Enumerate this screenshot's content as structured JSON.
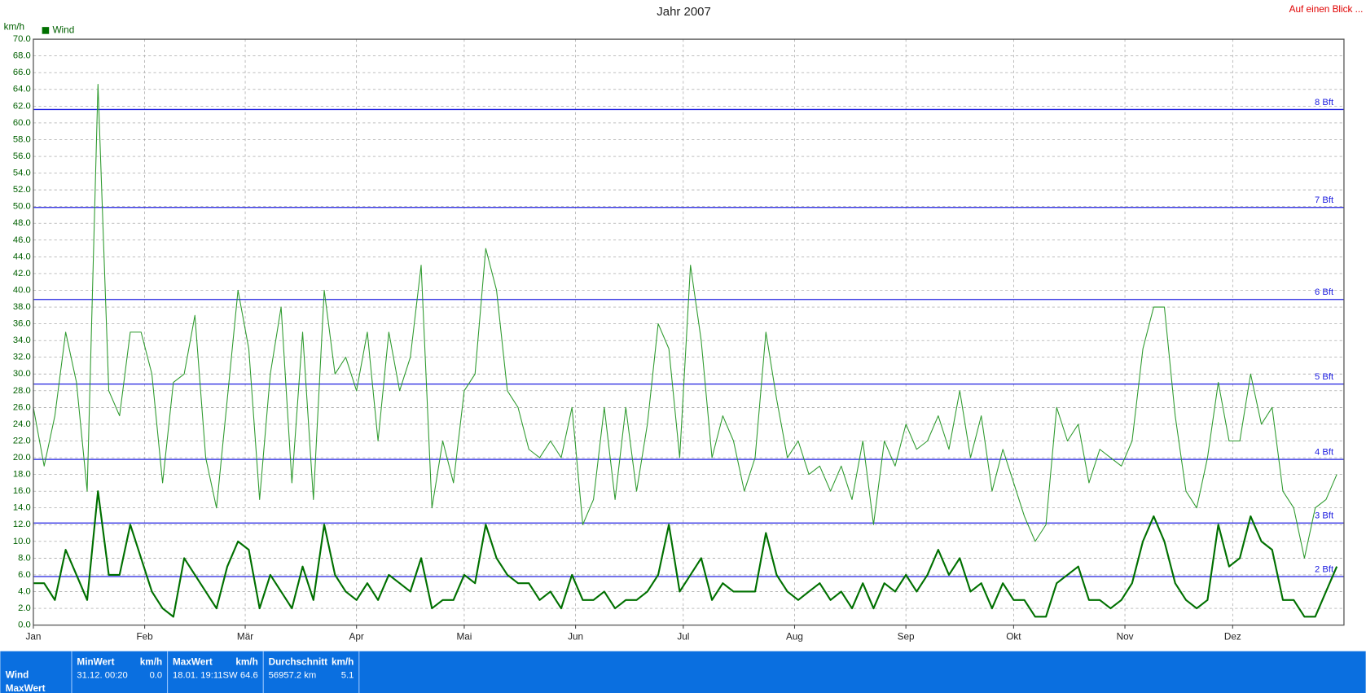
{
  "chart_data": {
    "type": "line",
    "title": "Jahr 2007",
    "y_unit": "km/h",
    "link": "Auf einen Blick ...",
    "x": [
      0,
      3,
      6,
      9,
      12,
      15,
      18,
      21,
      24,
      27,
      30,
      33,
      36,
      39,
      42,
      45,
      48,
      51,
      54,
      57,
      60,
      63,
      66,
      69,
      72,
      75,
      78,
      81,
      84,
      87,
      90,
      93,
      96,
      99,
      102,
      105,
      108,
      111,
      114,
      117,
      120,
      123,
      126,
      129,
      132,
      135,
      138,
      141,
      144,
      147,
      150,
      153,
      156,
      159,
      162,
      165,
      168,
      171,
      174,
      177,
      180,
      183,
      186,
      189,
      192,
      195,
      198,
      201,
      204,
      207,
      210,
      213,
      216,
      219,
      222,
      225,
      228,
      231,
      234,
      237,
      240,
      243,
      246,
      249,
      252,
      255,
      258,
      261,
      264,
      267,
      270,
      273,
      276,
      279,
      282,
      285,
      288,
      291,
      294,
      297,
      300,
      303,
      306,
      309,
      312,
      315,
      318,
      321,
      324,
      327,
      330,
      333,
      336,
      339,
      342,
      345,
      348,
      351,
      354,
      357,
      360,
      363
    ],
    "series": [
      {
        "color": "#2e9a2e",
        "width": 1,
        "values": [
          26,
          19,
          25,
          35,
          29,
          16,
          64.6,
          28,
          25,
          35,
          35,
          30,
          17,
          29,
          30,
          37,
          20,
          14,
          27,
          40,
          33,
          15,
          30,
          38,
          17,
          35,
          15,
          40,
          30,
          32,
          28,
          35,
          22,
          35,
          28,
          32,
          43,
          14,
          22,
          17,
          28,
          30,
          45,
          40,
          28,
          26,
          21,
          20,
          22,
          20,
          26,
          12,
          15,
          26,
          15,
          26,
          16,
          24,
          36,
          33,
          20,
          43,
          34,
          20,
          25,
          22,
          16,
          20,
          35,
          27,
          20,
          22,
          18,
          19,
          16,
          19,
          15,
          22,
          12,
          22,
          19,
          24,
          21,
          22,
          25,
          21,
          28,
          20,
          25,
          16,
          21,
          17,
          13,
          10,
          12,
          26,
          22,
          24,
          17,
          21,
          20,
          19,
          22,
          33,
          38,
          38,
          25,
          16,
          14,
          20,
          29,
          22,
          22,
          30,
          24,
          26,
          16,
          14,
          8,
          14,
          15,
          18
        ]
      },
      {
        "name": "Wind",
        "color": "#007000",
        "width": 2,
        "values": [
          5,
          5,
          3,
          9,
          6,
          3,
          16,
          6,
          6,
          12,
          8,
          4,
          2,
          1,
          8,
          6,
          4,
          2,
          7,
          10,
          9,
          2,
          6,
          4,
          2,
          7,
          3,
          12,
          6,
          4,
          3,
          5,
          3,
          6,
          5,
          4,
          8,
          2,
          3,
          3,
          6,
          5,
          12,
          8,
          6,
          5,
          5,
          3,
          4,
          2,
          6,
          3,
          3,
          4,
          2,
          3,
          3,
          4,
          6,
          12,
          4,
          6,
          8,
          3,
          5,
          4,
          4,
          4,
          11,
          6,
          4,
          3,
          4,
          5,
          3,
          4,
          2,
          5,
          2,
          5,
          4,
          6,
          4,
          6,
          9,
          6,
          8,
          4,
          5,
          2,
          5,
          3,
          3,
          1,
          1,
          5,
          6,
          7,
          3,
          3,
          2,
          3,
          5,
          10,
          13,
          10,
          5,
          3,
          2,
          3,
          12,
          7,
          8,
          13,
          10,
          9,
          3,
          3,
          1,
          1,
          4,
          7
        ]
      }
    ],
    "xlim": [
      0,
      365
    ],
    "xticks": [
      {
        "value": 0,
        "label": "Jan"
      },
      {
        "value": 31,
        "label": "Feb"
      },
      {
        "value": 59,
        "label": "Mär"
      },
      {
        "value": 90,
        "label": "Apr"
      },
      {
        "value": 120,
        "label": "Mai"
      },
      {
        "value": 151,
        "label": "Jun"
      },
      {
        "value": 181,
        "label": "Jul"
      },
      {
        "value": 212,
        "label": "Aug"
      },
      {
        "value": 243,
        "label": "Sep"
      },
      {
        "value": 273,
        "label": "Okt"
      },
      {
        "value": 304,
        "label": "Nov"
      },
      {
        "value": 334,
        "label": "Dez"
      }
    ],
    "ylim": [
      0,
      70
    ],
    "yticks": [
      {
        "value": 0,
        "label": "0.0"
      },
      {
        "value": 2,
        "label": "2.0"
      },
      {
        "value": 4,
        "label": "4.0"
      },
      {
        "value": 6,
        "label": "6.0"
      },
      {
        "value": 8,
        "label": "8.0"
      },
      {
        "value": 10,
        "label": "10.0"
      },
      {
        "value": 12,
        "label": "12.0"
      },
      {
        "value": 14,
        "label": "14.0"
      },
      {
        "value": 16,
        "label": "16.0"
      },
      {
        "value": 18,
        "label": "18.0"
      },
      {
        "value": 20,
        "label": "20.0"
      },
      {
        "value": 22,
        "label": "22.0"
      },
      {
        "value": 24,
        "label": "24.0"
      },
      {
        "value": 26,
        "label": "26.0"
      },
      {
        "value": 28,
        "label": "28.0"
      },
      {
        "value": 30,
        "label": "30.0"
      },
      {
        "value": 32,
        "label": "32.0"
      },
      {
        "value": 34,
        "label": "34.0"
      },
      {
        "value": 36,
        "label": "36.0"
      },
      {
        "value": 38,
        "label": "38.0"
      },
      {
        "value": 40,
        "label": "40.0"
      },
      {
        "value": 42,
        "label": "42.0"
      },
      {
        "value": 44,
        "label": "44.0"
      },
      {
        "value": 46,
        "label": "46.0"
      },
      {
        "value": 48,
        "label": "48.0"
      },
      {
        "value": 50,
        "label": "50.0"
      },
      {
        "value": 52,
        "label": "52.0"
      },
      {
        "value": 54,
        "label": "54.0"
      },
      {
        "value": 56,
        "label": "56.0"
      },
      {
        "value": 58,
        "label": "58.0"
      },
      {
        "value": 60,
        "label": "60.0"
      },
      {
        "value": 62,
        "label": "62.0"
      },
      {
        "value": 64,
        "label": "64.0"
      },
      {
        "value": 66,
        "label": "66.0"
      },
      {
        "value": 68,
        "label": "68.0"
      },
      {
        "value": 70,
        "label": "70.0"
      }
    ],
    "grid": true,
    "reference_lines": {
      "color": "#2020e0",
      "lines": [
        {
          "value": 5.8,
          "label": "2 Bft"
        },
        {
          "value": 12.2,
          "label": "3 Bft"
        },
        {
          "value": 19.8,
          "label": "4 Bft"
        },
        {
          "value": 28.8,
          "label": "5 Bft"
        },
        {
          "value": 38.9,
          "label": "6 Bft"
        },
        {
          "value": 49.9,
          "label": "7 Bft"
        },
        {
          "value": 61.6,
          "label": "8 Bft"
        }
      ]
    }
  },
  "summary": {
    "row_labels": [
      "Wind",
      "MaxWert"
    ],
    "columns": [
      {
        "header": "MinWert",
        "unit": "km/h",
        "when": "31.12.  00:20",
        "value": "0.0"
      },
      {
        "header": "MaxWert",
        "unit": "km/h",
        "when": "18.01.  19:11SW",
        "value": "64.6"
      },
      {
        "header": "Durchschnitt",
        "unit": "km/h",
        "when": "56957.2 km",
        "value": "5.1"
      }
    ]
  }
}
